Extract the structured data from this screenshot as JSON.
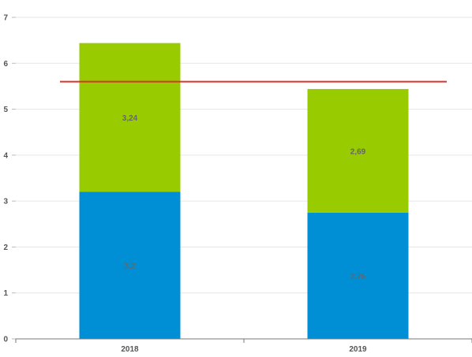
{
  "chart_data": {
    "type": "bar",
    "stacked": true,
    "categories": [
      "2018",
      "2019"
    ],
    "series": [
      {
        "values": [
          3.2,
          2.75
        ],
        "labels": [
          "3,2",
          "2,75"
        ],
        "color": "#008fd5"
      },
      {
        "values": [
          3.24,
          2.69
        ],
        "labels": [
          "3,24",
          "2,69"
        ],
        "color": "#99cc00"
      }
    ],
    "reference_line": {
      "value": 5.6,
      "color": "#d9342b"
    },
    "ylim": [
      0,
      7
    ],
    "yticks": [
      0,
      1,
      2,
      3,
      4,
      5,
      6,
      7
    ],
    "grid": true,
    "legend": "none",
    "title": "",
    "xlabel": "",
    "ylabel": ""
  }
}
